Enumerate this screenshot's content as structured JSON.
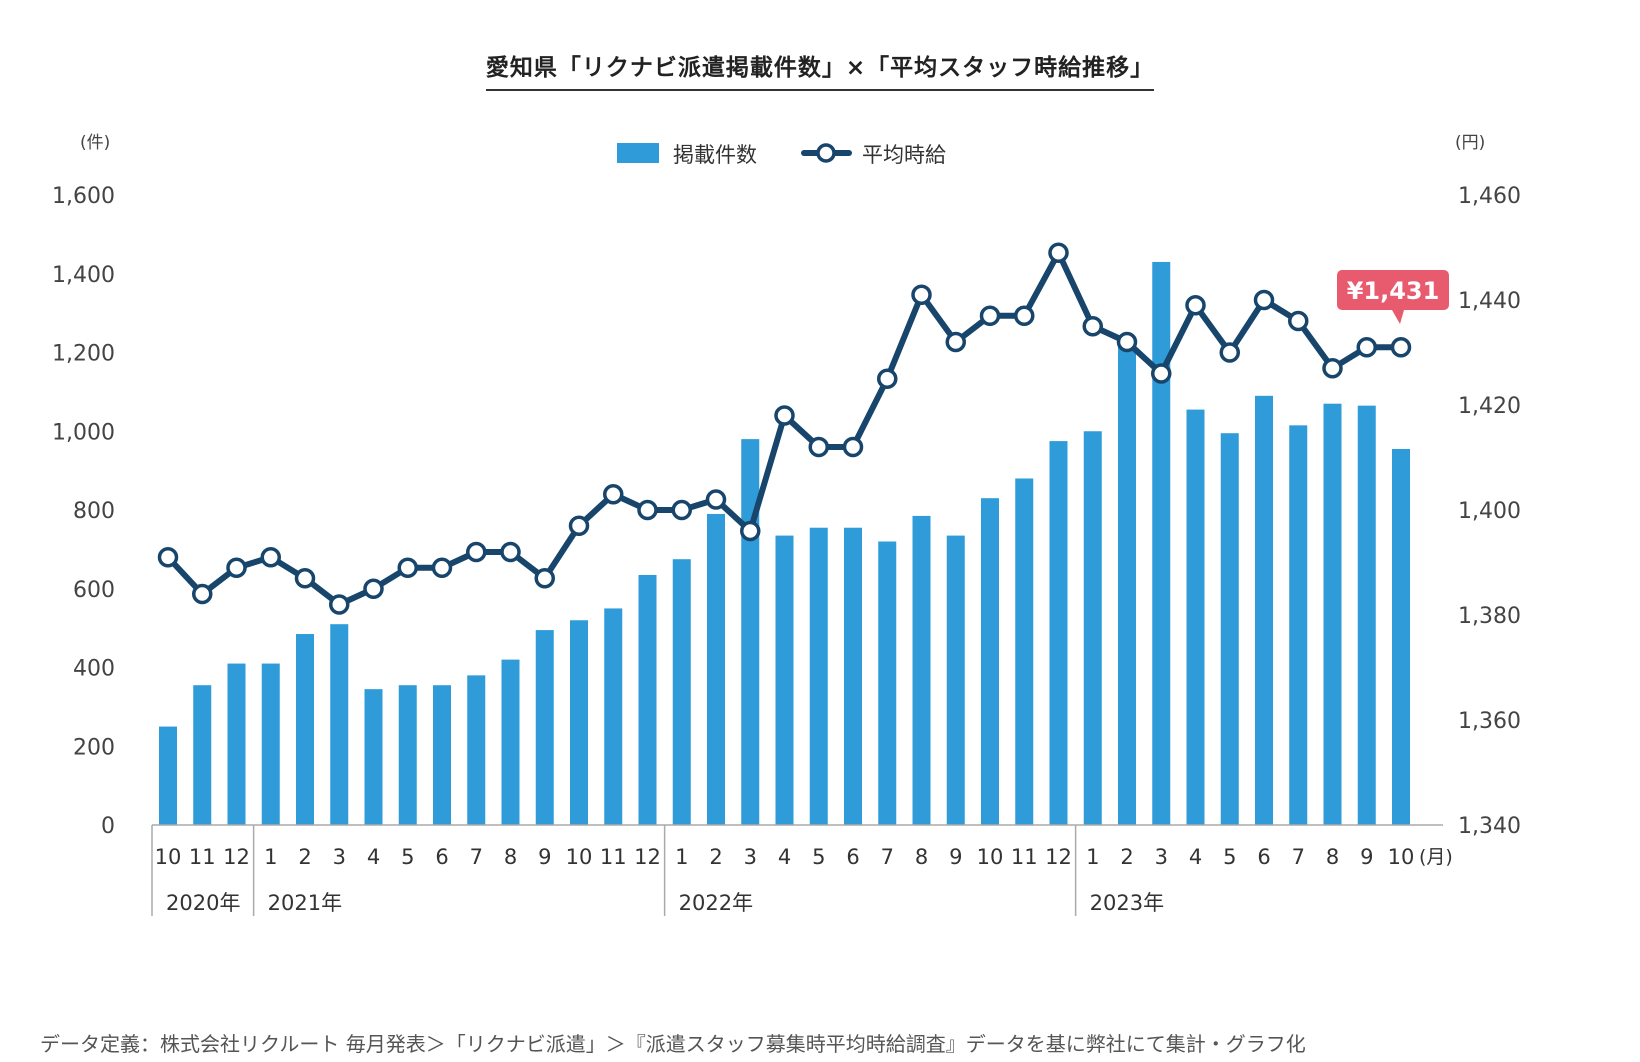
{
  "title": "愛知県「リクナビ派遣掲載件数」×「平均スタッフ時給推移」",
  "footnote": "データ定義：株式会社リクルート 毎月発表＞「リクナビ派遣」＞『派遣スタッフ募集時平均時給調査』データを基に弊社にて集計・グラフ化",
  "chart_data": {
    "type": "bar+line",
    "categories": [
      "10",
      "11",
      "12",
      "1",
      "2",
      "3",
      "4",
      "5",
      "6",
      "7",
      "8",
      "9",
      "10",
      "11",
      "12",
      "1",
      "2",
      "3",
      "4",
      "5",
      "6",
      "7",
      "8",
      "9",
      "10",
      "11",
      "12",
      "1",
      "2",
      "3",
      "4",
      "5",
      "6",
      "7",
      "8",
      "9",
      "10"
    ],
    "x_unit": "(月)",
    "year_groups": [
      {
        "label": "2020年",
        "start": 0,
        "end": 2
      },
      {
        "label": "2021年",
        "start": 3,
        "end": 14
      },
      {
        "label": "2022年",
        "start": 15,
        "end": 26
      },
      {
        "label": "2023年",
        "start": 27,
        "end": 36
      }
    ],
    "series": [
      {
        "name": "掲載件数",
        "type": "bar",
        "axis": "left",
        "color": "#2f9bd9",
        "values": [
          250,
          355,
          410,
          410,
          485,
          510,
          345,
          355,
          355,
          380,
          420,
          495,
          520,
          550,
          635,
          675,
          790,
          980,
          735,
          755,
          755,
          720,
          785,
          735,
          830,
          880,
          975,
          1000,
          1230,
          1430,
          1055,
          995,
          1090,
          1015,
          1070,
          1065,
          955
        ]
      },
      {
        "name": "平均時給",
        "type": "line",
        "axis": "right",
        "color": "#17456b",
        "values": [
          1391,
          1384,
          1389,
          1391,
          1387,
          1382,
          1385,
          1389,
          1389,
          1392,
          1392,
          1387,
          1397,
          1403,
          1400,
          1400,
          1402,
          1396,
          1418,
          1412,
          1412,
          1425,
          1441,
          1432,
          1437,
          1437,
          1449,
          1435,
          1432,
          1426,
          1439,
          1430,
          1440,
          1436,
          1427,
          1431,
          1431
        ]
      }
    ],
    "y_left": {
      "unit": "(件)",
      "min": 0,
      "max": 1600,
      "ticks": [
        "0",
        "200",
        "400",
        "600",
        "800",
        "1,000",
        "1,200",
        "1,400",
        "1,600"
      ]
    },
    "y_right": {
      "unit": "(円)",
      "min": 1340,
      "max": 1460,
      "ticks": [
        "1,340",
        "1,360",
        "1,380",
        "1,400",
        "1,420",
        "1,440",
        "1,460"
      ]
    },
    "callout": {
      "text": "¥1,431",
      "color": "#e85a6e",
      "index": 36
    },
    "legend_position": "top-center",
    "grid": false
  }
}
